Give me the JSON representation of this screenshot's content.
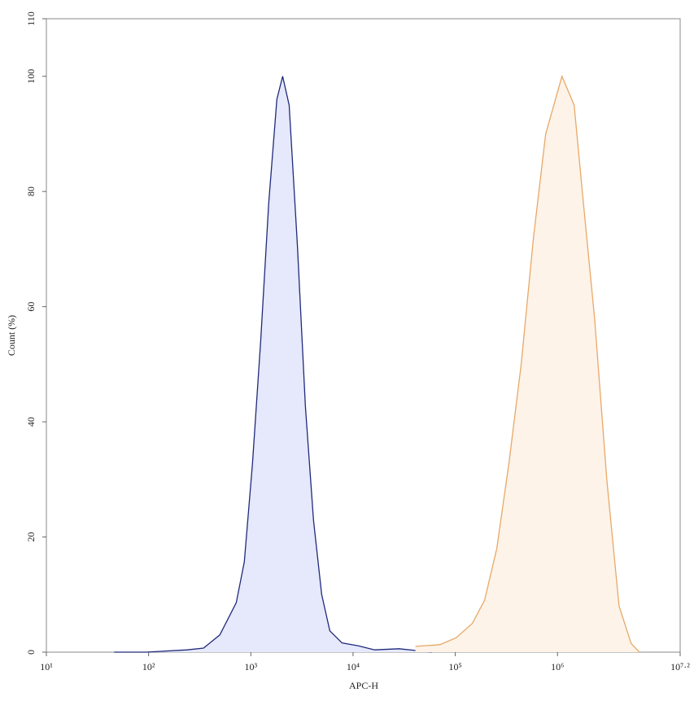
{
  "chart_data": {
    "type": "histogram-overlay",
    "xlabel": "APC-H",
    "ylabel": "Count (%)",
    "xscale": "log",
    "xlim": [
      10,
      15848931.92
    ],
    "ylim": [
      0,
      110
    ],
    "xticks": [
      {
        "value": 10,
        "label": "10¹"
      },
      {
        "value": 100,
        "label": "10²"
      },
      {
        "value": 1000,
        "label": "10³"
      },
      {
        "value": 10000,
        "label": "10⁴"
      },
      {
        "value": 100000,
        "label": "10⁵"
      },
      {
        "value": 1000000,
        "label": "10⁶"
      },
      {
        "value": 15848931.92,
        "label": "10⁷·²"
      }
    ],
    "yticks": [
      0,
      20,
      40,
      60,
      80,
      100,
      110
    ],
    "series": [
      {
        "color": "#1f2a7a",
        "fill": "#e6e8fb",
        "x": [
          46,
          95,
          239,
          345,
          498,
          720,
          863,
          1037,
          1248,
          1497,
          1799,
          2047,
          2371,
          2847,
          3421,
          4110,
          4935,
          5930,
          7800,
          11270,
          16260,
          28180,
          58750
        ],
        "values": [
          0,
          0,
          0.4,
          0.7,
          3,
          8.6,
          15.7,
          32.7,
          54,
          78,
          96,
          100,
          95,
          71,
          42.6,
          22.8,
          10,
          3.7,
          1.6,
          1.1,
          0.4,
          0.6,
          0
        ]
      },
      {
        "color": "#e8a868",
        "fill": "#fdf3e8",
        "x": [
          40740,
          70630,
          101900,
          146900,
          193600,
          254500,
          335700,
          441600,
          582100,
          765600,
          1106000,
          1456000,
          1749000,
          2306000,
          3034000,
          3999000,
          5261000,
          6324000
        ],
        "values": [
          1,
          1.3,
          2.5,
          5,
          9,
          18,
          33,
          50,
          72,
          90,
          100,
          95,
          80,
          58,
          30,
          8,
          1.5,
          0
        ]
      }
    ]
  }
}
